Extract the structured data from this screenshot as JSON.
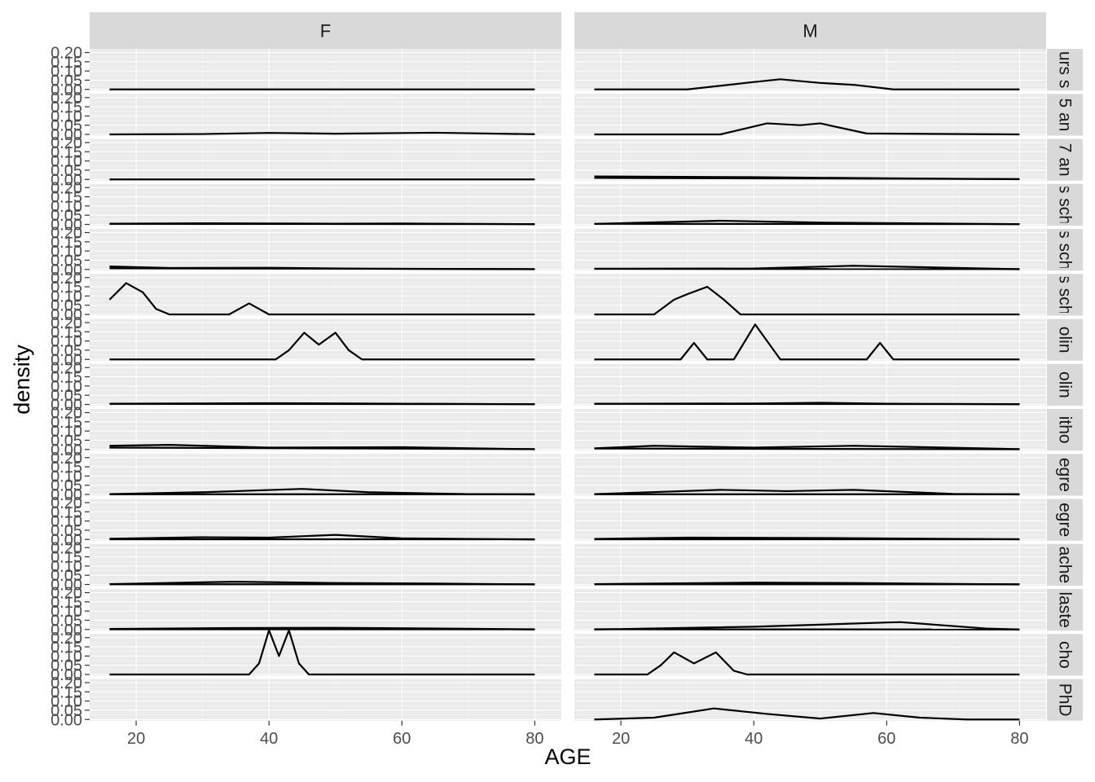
{
  "chart_data": {
    "type": "density",
    "title": "",
    "xlabel": "AGE",
    "ylabel": "density",
    "xlim": [
      13,
      84
    ],
    "ylim": [
      0,
      0.2
    ],
    "x_ticks": [
      20,
      40,
      60,
      80
    ],
    "y_ticks": [
      "0.00",
      "0.05",
      "0.10",
      "0.15",
      "0.20"
    ],
    "col_facets": [
      "F",
      "M"
    ],
    "row_facets": [
      "urs s",
      "5 an",
      "7 an",
      "s sch",
      "s sch",
      "s sch",
      "olin",
      "olin",
      "itho",
      "egre",
      "egre",
      "ache",
      "laste",
      "cho",
      "PhD"
    ],
    "grid": true,
    "panels": [
      [
        {
          "curves": [
            [
              [
                16,
                0
              ],
              [
                80,
                0
              ]
            ]
          ]
        },
        {
          "curves": [
            [
              [
                16,
                0
              ],
              [
                30,
                0.002
              ],
              [
                40,
                0.008
              ],
              [
                50,
                0.004
              ],
              [
                65,
                0.009
              ],
              [
                80,
                0.001
              ]
            ]
          ]
        },
        {
          "curves": [
            [
              [
                16,
                0
              ],
              [
                80,
                0
              ]
            ]
          ]
        },
        {
          "curves": [
            [
              [
                16,
                0.004
              ],
              [
                30,
                0.006
              ],
              [
                50,
                0.004
              ],
              [
                60,
                0.005
              ],
              [
                80,
                0.001
              ]
            ],
            [
              [
                16,
                0.003
              ],
              [
                80,
                0.002
              ]
            ]
          ]
        },
        {
          "curves": [
            [
              [
                16,
                0.016
              ],
              [
                25,
                0.008
              ],
              [
                40,
                0.009
              ],
              [
                55,
                0.004
              ],
              [
                80,
                0.001
              ]
            ],
            [
              [
                16,
                0.006
              ],
              [
                80,
                0.002
              ]
            ]
          ]
        },
        {
          "curves": [
            [
              [
                16,
                0.08
              ],
              [
                18.5,
                0.17
              ],
              [
                21,
                0.12
              ],
              [
                23,
                0.03
              ],
              [
                25,
                0
              ],
              [
                34,
                0
              ],
              [
                37,
                0.06
              ],
              [
                40,
                0
              ],
              [
                80,
                0
              ]
            ]
          ]
        },
        {
          "curves": [
            [
              [
                16,
                0
              ],
              [
                41,
                0
              ],
              [
                43,
                0.05
              ],
              [
                45.3,
                0.145
              ],
              [
                47.5,
                0.08
              ],
              [
                50,
                0.145
              ],
              [
                52,
                0.05
              ],
              [
                54,
                0
              ],
              [
                80,
                0
              ]
            ]
          ]
        },
        {
          "curves": [
            [
              [
                16,
                0.004
              ],
              [
                40,
                0.007
              ],
              [
                60,
                0.004
              ],
              [
                80,
                0.001
              ]
            ],
            [
              [
                16,
                0.003
              ],
              [
                80,
                0.002
              ]
            ]
          ]
        },
        {
          "curves": [
            [
              [
                16,
                0.02
              ],
              [
                25,
                0.025
              ],
              [
                40,
                0.01
              ],
              [
                60,
                0.012
              ],
              [
                80,
                0.001
              ]
            ],
            [
              [
                16,
                0.01
              ],
              [
                80,
                0.002
              ]
            ]
          ]
        },
        {
          "curves": [
            [
              [
                16,
                0.002
              ],
              [
                30,
                0.012
              ],
              [
                45,
                0.03
              ],
              [
                55,
                0.012
              ],
              [
                70,
                0.002
              ],
              [
                80,
                0
              ]
            ],
            [
              [
                16,
                0.001
              ],
              [
                80,
                0.001
              ]
            ]
          ]
        },
        {
          "curves": [
            [
              [
                16,
                0.004
              ],
              [
                30,
                0.012
              ],
              [
                40,
                0.01
              ],
              [
                50,
                0.025
              ],
              [
                60,
                0.006
              ],
              [
                80,
                0
              ]
            ],
            [
              [
                16,
                0.001
              ],
              [
                80,
                0.001
              ]
            ]
          ]
        },
        {
          "curves": [
            [
              [
                16,
                0.002
              ],
              [
                35,
                0.015
              ],
              [
                50,
                0.008
              ],
              [
                65,
                0.005
              ],
              [
                80,
                0
              ]
            ],
            [
              [
                16,
                0.001
              ],
              [
                80,
                0.001
              ]
            ]
          ]
        },
        {
          "curves": [
            [
              [
                16,
                0.003
              ],
              [
                35,
                0.008
              ],
              [
                50,
                0.009
              ],
              [
                70,
                0.004
              ],
              [
                80,
                0
              ]
            ],
            [
              [
                16,
                0.001
              ],
              [
                80,
                0.001
              ]
            ]
          ]
        },
        {
          "curves": [
            [
              [
                16,
                0
              ],
              [
                37,
                0
              ],
              [
                38.5,
                0.06
              ],
              [
                40,
                0.24
              ],
              [
                41.5,
                0.1
              ],
              [
                43,
                0.24
              ],
              [
                44.5,
                0.06
              ],
              [
                46,
                0
              ],
              [
                80,
                0
              ]
            ]
          ]
        },
        {
          "curves": []
        }
      ],
      [
        {
          "curves": [
            [
              [
                16,
                0
              ],
              [
                30,
                0
              ],
              [
                40,
                0.04
              ],
              [
                44,
                0.055
              ],
              [
                50,
                0.035
              ],
              [
                55,
                0.025
              ],
              [
                61,
                0
              ],
              [
                80,
                0
              ]
            ]
          ]
        },
        {
          "curves": [
            [
              [
                16,
                0
              ],
              [
                35,
                0
              ],
              [
                42,
                0.06
              ],
              [
                47,
                0.05
              ],
              [
                50,
                0.06
              ],
              [
                57,
                0.005
              ],
              [
                80,
                0
              ]
            ]
          ]
        },
        {
          "curves": [
            [
              [
                16,
                0.016
              ],
              [
                40,
                0.012
              ],
              [
                60,
                0.006
              ],
              [
                80,
                0.001
              ]
            ],
            [
              [
                16,
                0.008
              ],
              [
                80,
                0.002
              ]
            ]
          ]
        },
        {
          "curves": [
            [
              [
                16,
                0.003
              ],
              [
                35,
                0.02
              ],
              [
                50,
                0.01
              ],
              [
                80,
                0.001
              ]
            ],
            [
              [
                16,
                0.003
              ],
              [
                80,
                0.002
              ]
            ]
          ]
        },
        {
          "curves": [
            [
              [
                16,
                0.004
              ],
              [
                40,
                0.005
              ],
              [
                55,
                0.02
              ],
              [
                80,
                0.001
              ]
            ],
            [
              [
                16,
                0.003
              ],
              [
                80,
                0.002
              ]
            ]
          ]
        },
        {
          "curves": [
            [
              [
                16,
                0
              ],
              [
                25,
                0
              ],
              [
                28,
                0.08
              ],
              [
                30,
                0.11
              ],
              [
                33,
                0.15
              ],
              [
                35.5,
                0.08
              ],
              [
                38,
                0
              ],
              [
                80,
                0
              ]
            ]
          ]
        },
        {
          "curves": [
            [
              [
                16,
                0
              ],
              [
                29,
                0
              ],
              [
                31,
                0.09
              ],
              [
                33,
                0
              ],
              [
                37,
                0
              ],
              [
                40.2,
                0.19
              ],
              [
                42,
                0.1
              ],
              [
                44,
                0
              ],
              [
                57,
                0
              ],
              [
                59,
                0.09
              ],
              [
                61,
                0
              ],
              [
                80,
                0
              ]
            ]
          ]
        },
        {
          "curves": [
            [
              [
                16,
                0.004
              ],
              [
                40,
                0.005
              ],
              [
                50,
                0.009
              ],
              [
                60,
                0.004
              ],
              [
                80,
                0.001
              ]
            ],
            [
              [
                16,
                0.003
              ],
              [
                80,
                0.002
              ]
            ]
          ]
        },
        {
          "curves": [
            [
              [
                16,
                0.006
              ],
              [
                25,
                0.02
              ],
              [
                40,
                0.01
              ],
              [
                55,
                0.02
              ],
              [
                80,
                0.002
              ]
            ],
            [
              [
                16,
                0.005
              ],
              [
                80,
                0.001
              ]
            ]
          ]
        },
        {
          "curves": [
            [
              [
                16,
                0.002
              ],
              [
                35,
                0.025
              ],
              [
                45,
                0.018
              ],
              [
                55,
                0.025
              ],
              [
                70,
                0.003
              ],
              [
                80,
                0
              ]
            ],
            [
              [
                16,
                0.001
              ],
              [
                80,
                0.001
              ]
            ]
          ]
        },
        {
          "curves": [
            [
              [
                16,
                0.003
              ],
              [
                30,
                0.01
              ],
              [
                50,
                0.008
              ],
              [
                80,
                0.001
              ]
            ],
            [
              [
                16,
                0.001
              ],
              [
                80,
                0.001
              ]
            ]
          ]
        },
        {
          "curves": [
            [
              [
                16,
                0.002
              ],
              [
                40,
                0.01
              ],
              [
                55,
                0.008
              ],
              [
                80,
                0
              ]
            ],
            [
              [
                16,
                0.001
              ],
              [
                80,
                0.001
              ]
            ]
          ]
        },
        {
          "curves": [
            [
              [
                16,
                0
              ],
              [
                40,
                0.015
              ],
              [
                62,
                0.04
              ],
              [
                75,
                0.005
              ],
              [
                80,
                0
              ]
            ],
            [
              [
                16,
                0.001
              ],
              [
                80,
                0
              ]
            ]
          ]
        },
        {
          "curves": [
            [
              [
                16,
                0
              ],
              [
                24,
                0
              ],
              [
                26,
                0.05
              ],
              [
                28,
                0.12
              ],
              [
                31,
                0.06
              ],
              [
                34.3,
                0.12
              ],
              [
                37,
                0.02
              ],
              [
                39,
                0
              ],
              [
                80,
                0
              ]
            ]
          ]
        },
        {
          "curves": [
            [
              [
                16,
                0
              ],
              [
                25,
                0.01
              ],
              [
                34,
                0.06
              ],
              [
                42,
                0.03
              ],
              [
                50,
                0.005
              ],
              [
                58,
                0.035
              ],
              [
                65,
                0.01
              ],
              [
                72,
                0
              ],
              [
                80,
                0
              ]
            ]
          ]
        }
      ]
    ]
  }
}
